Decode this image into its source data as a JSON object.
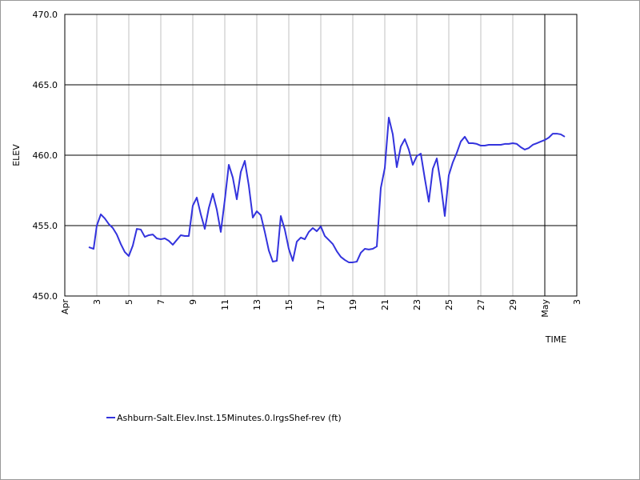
{
  "chart_data": {
    "type": "line",
    "y_label": "ELEV",
    "x_label": "TIME",
    "x": [
      2.5,
      2.8,
      3,
      3.25,
      3.5,
      3.75,
      4,
      4.25,
      4.5,
      4.75,
      5,
      5.25,
      5.5,
      5.75,
      6,
      6.25,
      6.5,
      6.75,
      7,
      7.25,
      7.5,
      7.75,
      8,
      8.25,
      8.5,
      8.75,
      9,
      9.25,
      9.5,
      9.75,
      10,
      10.25,
      10.5,
      10.75,
      11,
      11.25,
      11.5,
      11.75,
      12,
      12.25,
      12.5,
      12.75,
      13,
      13.25,
      13.5,
      13.75,
      14,
      14.25,
      14.5,
      14.75,
      15,
      15.25,
      15.5,
      15.75,
      16,
      16.25,
      16.5,
      16.75,
      17,
      17.25,
      17.5,
      17.75,
      18,
      18.25,
      18.5,
      18.75,
      19,
      19.25,
      19.5,
      19.75,
      20,
      20.25,
      20.5,
      20.75,
      21,
      21.25,
      21.5,
      21.75,
      22,
      22.25,
      22.5,
      22.75,
      23,
      23.25,
      23.5,
      23.75,
      24,
      24.25,
      24.5,
      24.75,
      25,
      25.25,
      25.5,
      25.75,
      26,
      26.25,
      26.5,
      26.75,
      27,
      27.25,
      27.5,
      27.75,
      28,
      28.25,
      28.5,
      28.75,
      29,
      29.25,
      29.5,
      29.75,
      30,
      30.25,
      30.5,
      30.75,
      31,
      31.25,
      31.5,
      31.75,
      32,
      32.25
    ],
    "series": [
      {
        "name": "Ashburn-Salt.Elev.Inst.15Minutes.0.lrgsShef-rev (ft)",
        "color": "#3333dd",
        "values": [
          453.47,
          453.35,
          455.0,
          455.8,
          455.51,
          455.11,
          454.83,
          454.37,
          453.69,
          453.12,
          452.84,
          453.58,
          454.77,
          454.72,
          454.2,
          454.32,
          454.37,
          454.09,
          454.03,
          454.09,
          453.92,
          453.64,
          453.98,
          454.32,
          454.26,
          454.26,
          456.42,
          456.99,
          455.8,
          454.77,
          456.25,
          457.27,
          456.14,
          454.55,
          456.82,
          459.32,
          458.41,
          456.87,
          458.81,
          459.6,
          457.84,
          455.57,
          456.02,
          455.74,
          454.55,
          453.24,
          452.44,
          452.5,
          455.68,
          454.72,
          453.35,
          452.5,
          453.86,
          454.15,
          454.03,
          454.55,
          454.83,
          454.6,
          454.94,
          454.26,
          453.98,
          453.69,
          453.18,
          452.78,
          452.56,
          452.39,
          452.39,
          452.44,
          453.07,
          453.35,
          453.3,
          453.35,
          453.52,
          457.67,
          459.09,
          462.67,
          461.48,
          459.15,
          460.62,
          461.14,
          460.4,
          459.32,
          459.94,
          460.11,
          458.35,
          456.7,
          459.03,
          459.77,
          457.95,
          455.68,
          458.58,
          459.49,
          460.17,
          460.97,
          461.31,
          460.85,
          460.85,
          460.8,
          460.68,
          460.68,
          460.74,
          460.74,
          460.74,
          460.74,
          460.8,
          460.8,
          460.85,
          460.8,
          460.57,
          460.4,
          460.51,
          460.74,
          460.85,
          460.97,
          461.08,
          461.25,
          461.53,
          461.53,
          461.48,
          461.31
        ]
      }
    ],
    "xlim": [
      1,
      33
    ],
    "xticks": [
      {
        "value": 1,
        "label": "Apr"
      },
      3,
      5,
      7,
      9,
      11,
      13,
      15,
      17,
      19,
      21,
      23,
      25,
      27,
      29,
      {
        "value": 31,
        "label": "May"
      },
      {
        "value": 33,
        "label": "3"
      }
    ],
    "ylim": [
      450,
      470
    ],
    "yticks": [
      {
        "value": 450,
        "label": "450.0"
      },
      {
        "value": 455,
        "label": "455.0"
      },
      {
        "value": 460,
        "label": "460.0"
      },
      {
        "value": 465,
        "label": "465.0"
      },
      {
        "value": 470,
        "label": "470.0"
      }
    ],
    "grid": true
  }
}
